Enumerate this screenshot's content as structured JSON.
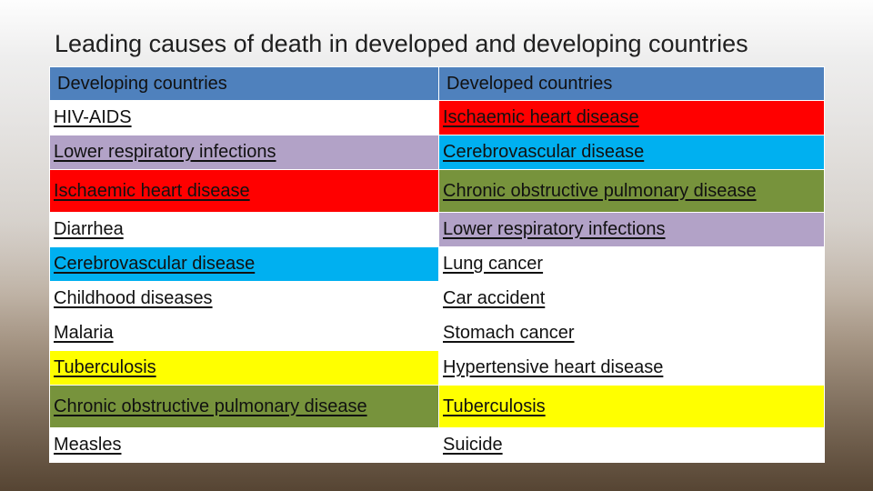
{
  "slide": {
    "title": "Leading causes of death in developed and developing countries"
  },
  "table": {
    "headers": [
      "Developing countries",
      "Developed countries"
    ],
    "rows": [
      {
        "developing": "HIV-AIDS",
        "developed": "Ischaemic heart disease",
        "developing_color": "#ffffff",
        "developed_color": "#ff0000"
      },
      {
        "developing": "Lower respiratory infections",
        "developed": "Cerebrovascular disease",
        "developing_color": "#b2a2c7",
        "developed_color": "#00b0f0"
      },
      {
        "developing": "Ischaemic heart disease",
        "developed": "Chronic obstructive pulmonary disease",
        "developing_color": "#ff0000",
        "developed_color": "#77933c"
      },
      {
        "developing": "Diarrhea",
        "developed": "Lower respiratory infections",
        "developing_color": "#ffffff",
        "developed_color": "#b2a2c7"
      },
      {
        "developing": "Cerebrovascular disease",
        "developed": "Lung cancer",
        "developing_color": "#00b0f0",
        "developed_color": "#ffffff"
      },
      {
        "developing": "Childhood diseases",
        "developed": "Car accident",
        "developing_color": "#ffffff",
        "developed_color": "#ffffff"
      },
      {
        "developing": "Malaria",
        "developed": "Stomach cancer",
        "developing_color": "#ffffff",
        "developed_color": "#ffffff"
      },
      {
        "developing": "Tuberculosis",
        "developed": "Hypertensive heart disease",
        "developing_color": "#ffff00",
        "developed_color": "#ffffff"
      },
      {
        "developing": "Chronic obstructive pulmonary disease",
        "developed": "Tuberculosis",
        "developing_color": "#77933c",
        "developed_color": "#ffff00"
      },
      {
        "developing": "Measles",
        "developed": "Suicide",
        "developing_color": "#ffffff",
        "developed_color": "#ffffff"
      }
    ]
  }
}
